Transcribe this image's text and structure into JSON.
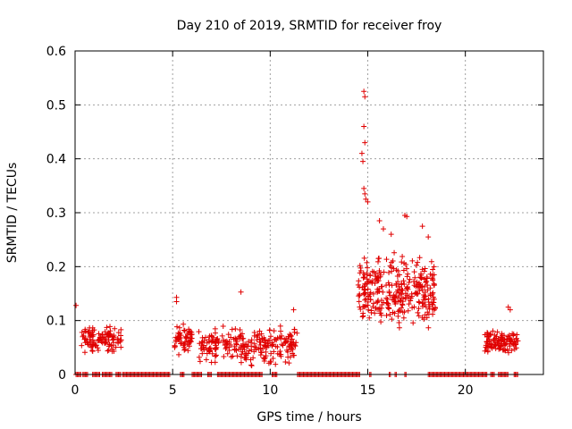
{
  "chart_data": {
    "type": "scatter",
    "title": "Day 210 of 2019, SRMTID for receiver froy",
    "xlabel": "GPS time / hours",
    "ylabel": "SRMTID / TECUs",
    "xlim": [
      0,
      24
    ],
    "ylim": [
      0,
      0.6
    ],
    "xticks": [
      0,
      5,
      10,
      15,
      20
    ],
    "yticks": [
      0,
      0.1,
      0.2,
      0.3,
      0.4,
      0.5,
      0.6
    ],
    "xtick_labels": [
      "0",
      "5",
      "10",
      "15",
      "20"
    ],
    "ytick_labels": [
      "0",
      "0.1",
      "0.2",
      "0.3",
      "0.4",
      "0.5",
      "0.6"
    ],
    "grid": true,
    "marker": "+",
    "color": "#e00000",
    "series": [
      {
        "name": "SRMTID",
        "clusters": [
          {
            "x_range": [
              0.3,
              2.4
            ],
            "y_center": 0.065,
            "y_spread": 0.02,
            "count": 120
          },
          {
            "x_range": [
              5.1,
              6.0
            ],
            "y_center": 0.065,
            "y_spread": 0.022,
            "count": 60
          },
          {
            "x_range": [
              6.3,
              11.4
            ],
            "y_center": 0.055,
            "y_spread": 0.028,
            "count": 260
          },
          {
            "x_range": [
              14.5,
              18.5
            ],
            "y_center": 0.15,
            "y_spread": 0.055,
            "count": 320
          },
          {
            "x_range": [
              21.0,
              22.7
            ],
            "y_center": 0.06,
            "y_spread": 0.018,
            "count": 110
          }
        ],
        "points": [
          [
            0.05,
            0.128
          ],
          [
            5.2,
            0.143
          ],
          [
            5.2,
            0.135
          ],
          [
            8.5,
            0.153
          ],
          [
            11.2,
            0.12
          ],
          [
            14.8,
            0.525
          ],
          [
            14.85,
            0.515
          ],
          [
            14.8,
            0.46
          ],
          [
            14.85,
            0.43
          ],
          [
            14.7,
            0.41
          ],
          [
            14.75,
            0.395
          ],
          [
            14.8,
            0.345
          ],
          [
            14.85,
            0.335
          ],
          [
            14.9,
            0.325
          ],
          [
            15.0,
            0.32
          ],
          [
            16.9,
            0.295
          ],
          [
            17.0,
            0.293
          ],
          [
            15.6,
            0.285
          ],
          [
            15.8,
            0.27
          ],
          [
            17.8,
            0.275
          ],
          [
            16.2,
            0.26
          ],
          [
            18.4,
            0.185
          ],
          [
            22.2,
            0.125
          ],
          [
            22.3,
            0.12
          ],
          [
            18.1,
            0.255
          ]
        ],
        "zero_segments": [
          [
            0.05,
            0.3
          ],
          [
            0.4,
            0.7
          ],
          [
            0.9,
            1.3
          ],
          [
            1.4,
            1.9
          ],
          [
            2.1,
            2.4
          ],
          [
            2.45,
            4.9
          ],
          [
            5.4,
            5.6
          ],
          [
            6.0,
            6.5
          ],
          [
            6.8,
            7.0
          ],
          [
            7.3,
            9.6
          ],
          [
            10.1,
            10.4
          ],
          [
            11.4,
            14.6
          ],
          [
            15.1,
            15.2
          ],
          [
            16.1,
            16.2
          ],
          [
            16.4,
            16.5
          ],
          [
            16.9,
            17.0
          ],
          [
            18.1,
            21.1
          ],
          [
            21.3,
            21.5
          ],
          [
            21.7,
            22.2
          ],
          [
            22.5,
            22.7
          ]
        ]
      }
    ]
  }
}
